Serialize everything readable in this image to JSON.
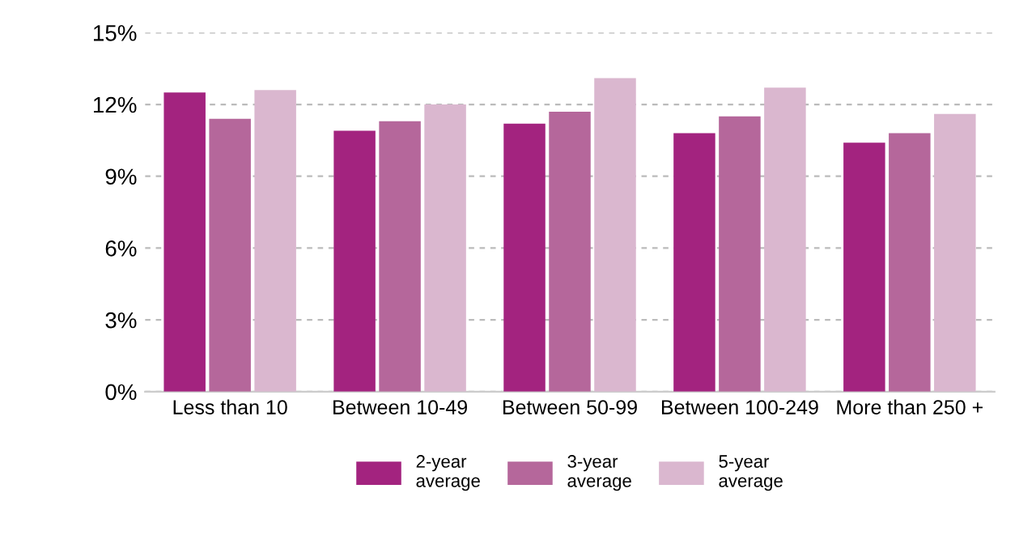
{
  "chart_data": {
    "type": "bar",
    "categories": [
      "Less than 10",
      "Between 10-49",
      "Between 50-99",
      "Between 100-249",
      "More than 250 +"
    ],
    "series": [
      {
        "name": "2-year\naverage",
        "color": "#a3237f",
        "values": [
          12.5,
          10.9,
          11.2,
          10.8,
          10.4
        ]
      },
      {
        "name": "3-year\naverage",
        "color": "#b5679b",
        "values": [
          11.4,
          11.3,
          11.7,
          11.5,
          10.8
        ]
      },
      {
        "name": "5-year\naverage",
        "color": "#dab7cf",
        "values": [
          12.6,
          12.0,
          13.1,
          12.7,
          11.6
        ]
      }
    ],
    "ylim": [
      0,
      15
    ],
    "yticks": [
      {
        "value": 0,
        "label": "0%"
      },
      {
        "value": 3,
        "label": "3%"
      },
      {
        "value": 6,
        "label": "6%"
      },
      {
        "value": 9,
        "label": "9%"
      },
      {
        "value": 12,
        "label": "12%"
      },
      {
        "value": 15,
        "label": "15%"
      }
    ],
    "grid": "y",
    "legend": "bottom"
  }
}
